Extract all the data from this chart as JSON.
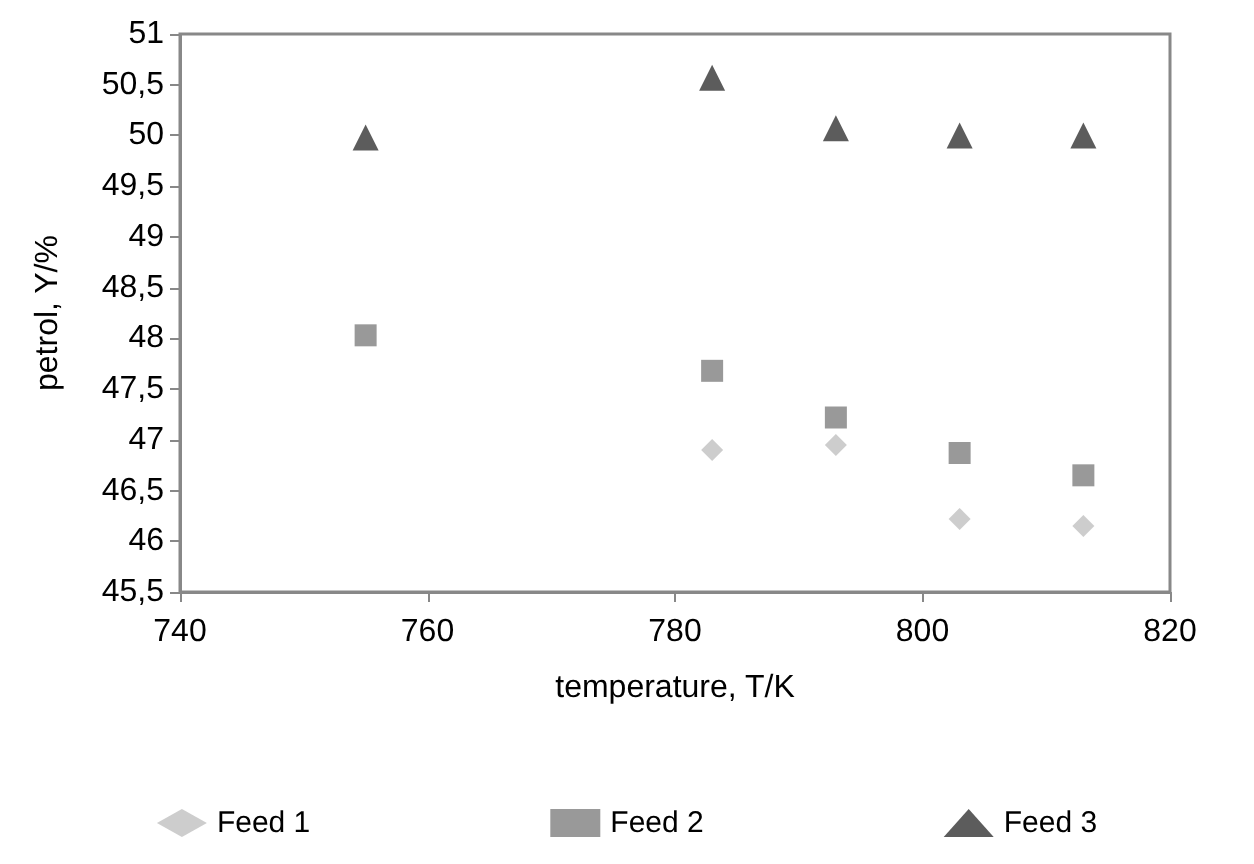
{
  "chart_data": {
    "type": "scatter",
    "xlabel": "temperature, T/K",
    "ylabel": "petrol, Y/%",
    "x": [
      755,
      783,
      793,
      803,
      813
    ],
    "series": [
      {
        "name": "Feed 1",
        "color": "#c0c0c0",
        "marker": "diamond",
        "values": [
          null,
          46.9,
          46.95,
          46.22,
          46.15
        ]
      },
      {
        "name": "Feed 2",
        "color": "#808080",
        "marker": "square",
        "values": [
          48.03,
          47.68,
          47.22,
          46.87,
          46.65
        ]
      },
      {
        "name": "Feed 3",
        "color": "#333333",
        "marker": "triangle",
        "values": [
          49.98,
          50.57,
          50.07,
          50.0,
          50.0
        ]
      }
    ],
    "xlim": [
      740,
      820
    ],
    "xticks": [
      740,
      760,
      780,
      800,
      820
    ],
    "ylim": [
      45.5,
      51
    ],
    "yticks": [
      {
        "value": 45.5,
        "label": "45,5"
      },
      46,
      {
        "value": 46.5,
        "label": "46,5"
      },
      47,
      {
        "value": 47.5,
        "label": "47,5"
      },
      48,
      {
        "value": 48.5,
        "label": "48,5"
      },
      49,
      {
        "value": 49.5,
        "label": "49,5"
      },
      50,
      {
        "value": 50.5,
        "label": "50,5"
      },
      51
    ],
    "grid": false,
    "legend": "bottom"
  }
}
